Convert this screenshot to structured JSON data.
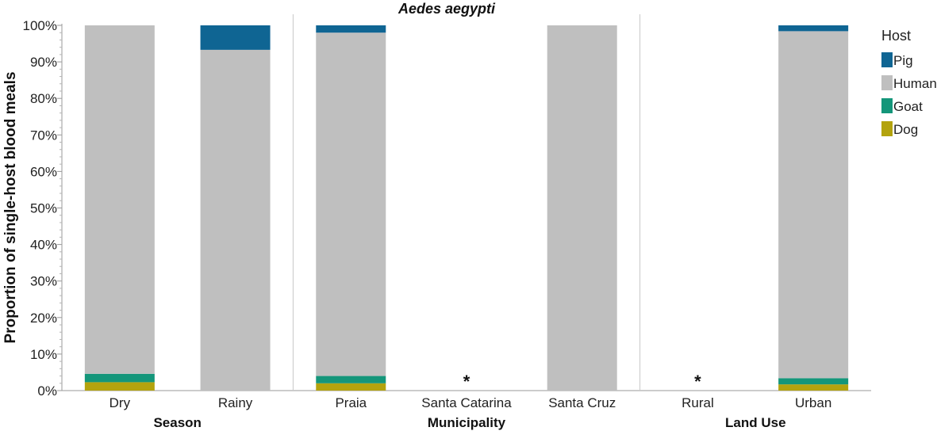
{
  "chart_data": {
    "type": "bar",
    "stacked": true,
    "title": "Aedes aegypti",
    "ylabel": "Proportion of single-host blood meals",
    "ylim": [
      0,
      100
    ],
    "yticks": [
      "0%",
      "10%",
      "20%",
      "30%",
      "40%",
      "50%",
      "60%",
      "70%",
      "80%",
      "90%",
      "100%"
    ],
    "grid": false,
    "legend": {
      "title": "Host",
      "position": "right",
      "entries": [
        {
          "name": "Pig",
          "color": "#0F6593"
        },
        {
          "name": "Human",
          "color": "#BFBFBF"
        },
        {
          "name": "Goat",
          "color": "#14967A"
        },
        {
          "name": "Dog",
          "color": "#B3A30E"
        }
      ]
    },
    "groups": [
      {
        "label": "Season",
        "categories": [
          "Dry",
          "Rainy"
        ]
      },
      {
        "label": "Municipality",
        "categories": [
          "Praia",
          "Santa Catarina",
          "Santa Cruz"
        ]
      },
      {
        "label": "Land Use",
        "categories": [
          "Rural",
          "Urban"
        ]
      }
    ],
    "categories": [
      "Dry",
      "Rainy",
      "Praia",
      "Santa Catarina",
      "Santa Cruz",
      "Rural",
      "Urban"
    ],
    "series": [
      {
        "name": "Dog",
        "color": "#B3A30E",
        "values": [
          2.3,
          0,
          2.0,
          0,
          0,
          0,
          1.7
        ]
      },
      {
        "name": "Goat",
        "color": "#14967A",
        "values": [
          2.3,
          0,
          2.0,
          0,
          0,
          0,
          1.7
        ]
      },
      {
        "name": "Human",
        "color": "#BFBFBF",
        "values": [
          95.4,
          93.3,
          94.0,
          0,
          100,
          0,
          95.0
        ]
      },
      {
        "name": "Pig",
        "color": "#0F6593",
        "values": [
          0,
          6.7,
          2.0,
          0,
          0,
          0,
          1.6
        ]
      }
    ],
    "annotations": [
      {
        "category": "Santa Catarina",
        "text": "*"
      },
      {
        "category": "Rural",
        "text": "*"
      }
    ]
  }
}
